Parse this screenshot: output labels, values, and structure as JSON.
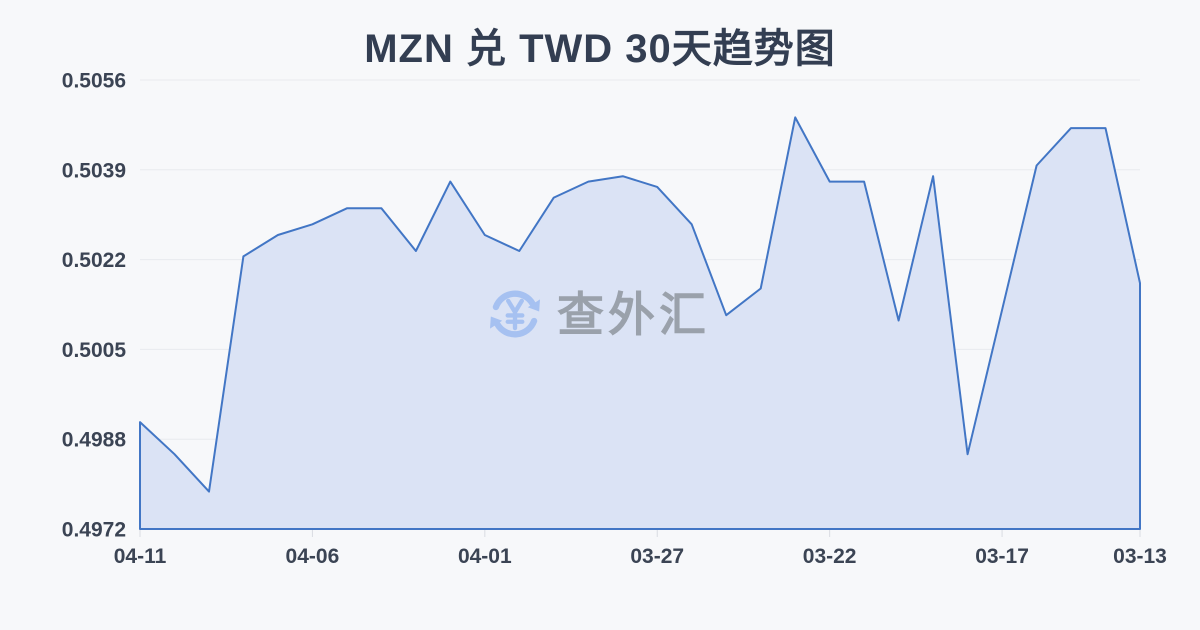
{
  "page": {
    "title": "MZN 兑 TWD 30天趋势图"
  },
  "watermark": {
    "text": "查外汇",
    "icon": "yen-refresh-icon"
  },
  "colors": {
    "line": "#4276c5",
    "fill": "#dbe3f5",
    "grid": "#e8eaee",
    "tick": "#d9dce2",
    "axis_text": "#3b4454",
    "title_text": "#333e52",
    "watermark_text": "#9aa1ab",
    "watermark_icon": "#a6c1f1",
    "background": "#f7f8fa"
  },
  "chart_data": {
    "type": "area",
    "title": "MZN 兑 TWD 30天趋势图",
    "xlabel": "",
    "ylabel": "",
    "grid": true,
    "legend_position": "none",
    "x_axis_note": "dates run newest (left) to oldest (right)",
    "x": [
      "04-11",
      "04-10",
      "04-09",
      "04-08",
      "04-07",
      "04-06",
      "04-05",
      "04-04",
      "04-03",
      "04-02",
      "04-01",
      "03-31",
      "03-30",
      "03-29",
      "03-28",
      "03-27",
      "03-26",
      "03-25",
      "03-24",
      "03-23",
      "03-22",
      "03-21",
      "03-20",
      "03-19",
      "03-18",
      "03-17",
      "03-16",
      "03-15",
      "03-14",
      "03-13"
    ],
    "values": [
      0.4992,
      0.4986,
      0.4979,
      0.5023,
      0.5027,
      0.5029,
      0.5032,
      0.5032,
      0.5024,
      0.5037,
      0.5027,
      0.5024,
      0.5034,
      0.5037,
      0.5038,
      0.5036,
      0.5029,
      0.5012,
      0.5017,
      0.5049,
      0.5037,
      0.5037,
      0.5011,
      0.5038,
      0.4986,
      0.5013,
      0.504,
      0.5047,
      0.5047,
      0.5018
    ],
    "x_tick_labels": [
      "04-11",
      "04-06",
      "04-01",
      "03-27",
      "03-22",
      "03-17",
      "03-13"
    ],
    "x_tick_indices": [
      0,
      5,
      10,
      15,
      20,
      25,
      29
    ],
    "y_tick_labels": [
      "0.5056",
      "0.5039",
      "0.5022",
      "0.5005",
      "0.4988",
      "0.4972"
    ],
    "ylim": [
      0.4972,
      0.5056
    ]
  }
}
